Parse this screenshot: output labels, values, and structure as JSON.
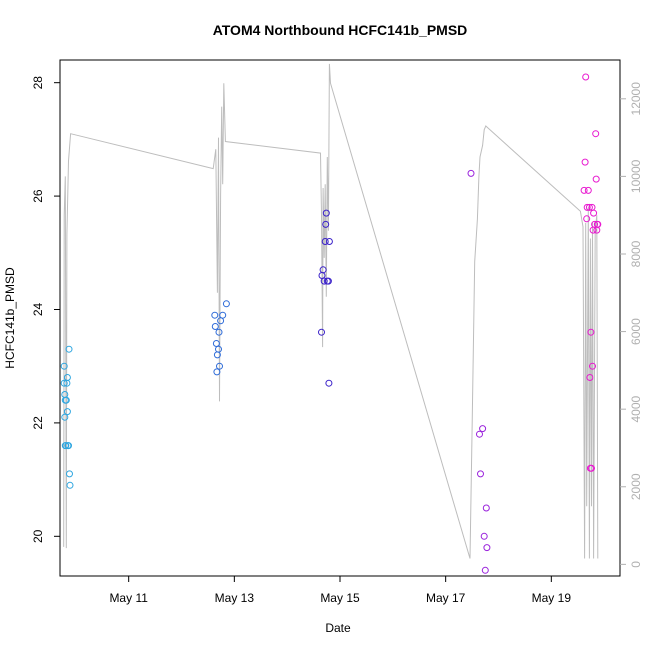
{
  "chart_data": {
    "type": "scatter",
    "title": "ATOM4 Northbound HCFC141b_PMSD",
    "xlabel": "Date",
    "ylabel": "HCFC141b_PMSD",
    "x_ticks": [
      "May 11",
      "May 13",
      "May 15",
      "May 17",
      "May 19"
    ],
    "x_tick_days": [
      11,
      13,
      15,
      17,
      19
    ],
    "xlim": [
      9.7,
      20.3
    ],
    "ylim": [
      19.3,
      28.4
    ],
    "y_ticks": [
      20,
      22,
      24,
      26,
      28
    ],
    "y_ticks_labels": [
      "20",
      "22",
      "24",
      "26",
      "28"
    ],
    "y2lim": [
      -300,
      13000
    ],
    "y2_ticks": [
      0,
      2000,
      4000,
      6000,
      8000,
      10000,
      12000
    ],
    "y2_ticks_labels": [
      "0",
      "2000",
      "4000",
      "6000",
      "8000",
      "10000",
      "12000"
    ],
    "grid": false,
    "series": [
      {
        "color": "#2ea6e0",
        "points": [
          [
            9.78,
            23.0
          ],
          [
            9.78,
            22.7
          ],
          [
            9.79,
            22.5
          ],
          [
            9.79,
            22.1
          ],
          [
            9.8,
            22.4
          ],
          [
            9.81,
            21.6
          ],
          [
            9.82,
            22.4
          ],
          [
            9.83,
            22.7
          ],
          [
            9.84,
            22.8
          ],
          [
            9.84,
            22.2
          ],
          [
            9.85,
            21.6
          ],
          [
            9.86,
            21.6
          ],
          [
            9.87,
            23.3
          ],
          [
            9.88,
            21.1
          ],
          [
            9.89,
            20.9
          ],
          [
            9.8,
            21.6
          ]
        ]
      },
      {
        "color": "#2f6cd8",
        "points": [
          [
            12.63,
            23.9
          ],
          [
            12.64,
            23.7
          ],
          [
            12.66,
            23.4
          ],
          [
            12.67,
            22.9
          ],
          [
            12.68,
            23.2
          ],
          [
            12.7,
            23.3
          ],
          [
            12.71,
            23.6
          ],
          [
            12.72,
            23.0
          ],
          [
            12.74,
            23.8
          ],
          [
            12.78,
            23.9
          ],
          [
            12.85,
            24.1
          ]
        ]
      },
      {
        "color": "#3b22c9",
        "points": [
          [
            14.65,
            23.6
          ],
          [
            14.66,
            24.6
          ],
          [
            14.68,
            24.7
          ],
          [
            14.7,
            24.5
          ],
          [
            14.72,
            25.2
          ],
          [
            14.73,
            25.5
          ],
          [
            14.74,
            25.7
          ],
          [
            14.76,
            24.5
          ],
          [
            14.78,
            24.5
          ],
          [
            14.8,
            25.2
          ],
          [
            14.79,
            22.7
          ]
        ]
      },
      {
        "color": "#9a22dc",
        "points": [
          [
            17.48,
            26.4
          ],
          [
            17.64,
            21.8
          ],
          [
            17.66,
            21.1
          ],
          [
            17.7,
            21.9
          ],
          [
            17.73,
            20.0
          ],
          [
            17.75,
            19.4
          ],
          [
            17.77,
            20.5
          ],
          [
            17.78,
            19.8
          ]
        ]
      },
      {
        "color": "#e81ad0",
        "points": [
          [
            19.62,
            26.1
          ],
          [
            19.64,
            26.6
          ],
          [
            19.65,
            28.1
          ],
          [
            19.67,
            25.6
          ],
          [
            19.68,
            25.8
          ],
          [
            19.7,
            26.1
          ],
          [
            19.72,
            25.8
          ],
          [
            19.73,
            22.8
          ],
          [
            19.74,
            21.2
          ],
          [
            19.75,
            23.6
          ],
          [
            19.76,
            21.2
          ],
          [
            19.77,
            25.8
          ],
          [
            19.78,
            23.0
          ],
          [
            19.79,
            25.4
          ],
          [
            19.8,
            25.7
          ],
          [
            19.82,
            25.5
          ],
          [
            19.84,
            27.1
          ],
          [
            19.85,
            26.3
          ],
          [
            19.86,
            25.4
          ],
          [
            19.87,
            25.5
          ],
          [
            19.88,
            25.5
          ]
        ]
      }
    ],
    "right_axis_line": {
      "color": "#bdbdbd",
      "points": [
        [
          9.77,
          450
        ],
        [
          9.78,
          9000
        ],
        [
          9.8,
          10000
        ],
        [
          9.82,
          420
        ],
        [
          9.83,
          8500
        ],
        [
          9.86,
          10400
        ],
        [
          9.9,
          11100
        ],
        [
          12.6,
          10200
        ],
        [
          12.65,
          10700
        ],
        [
          12.68,
          7000
        ],
        [
          12.7,
          11000
        ],
        [
          12.72,
          4200
        ],
        [
          12.74,
          9500
        ],
        [
          12.76,
          11800
        ],
        [
          12.78,
          9800
        ],
        [
          12.8,
          12400
        ],
        [
          12.83,
          10900
        ],
        [
          14.63,
          10600
        ],
        [
          14.65,
          9000
        ],
        [
          14.67,
          5600
        ],
        [
          14.68,
          9700
        ],
        [
          14.7,
          7900
        ],
        [
          14.72,
          9800
        ],
        [
          14.74,
          6900
        ],
        [
          14.76,
          10500
        ],
        [
          14.78,
          8600
        ],
        [
          14.8,
          12900
        ],
        [
          14.82,
          12400
        ],
        [
          17.46,
          150
        ],
        [
          17.5,
          3500
        ],
        [
          17.55,
          7800
        ],
        [
          17.6,
          8900
        ],
        [
          17.63,
          10000
        ],
        [
          17.65,
          10500
        ],
        [
          17.7,
          10800
        ],
        [
          17.73,
          11200
        ],
        [
          17.76,
          11300
        ],
        [
          19.55,
          9100
        ],
        [
          19.6,
          8700
        ],
        [
          19.63,
          150
        ],
        [
          19.65,
          8800
        ],
        [
          19.67,
          1500
        ],
        [
          19.7,
          9200
        ],
        [
          19.72,
          150
        ],
        [
          19.74,
          8400
        ],
        [
          19.76,
          1500
        ],
        [
          19.78,
          8800
        ],
        [
          19.8,
          150
        ],
        [
          19.83,
          8600
        ],
        [
          19.86,
          9000
        ],
        [
          19.88,
          150
        ]
      ]
    }
  }
}
